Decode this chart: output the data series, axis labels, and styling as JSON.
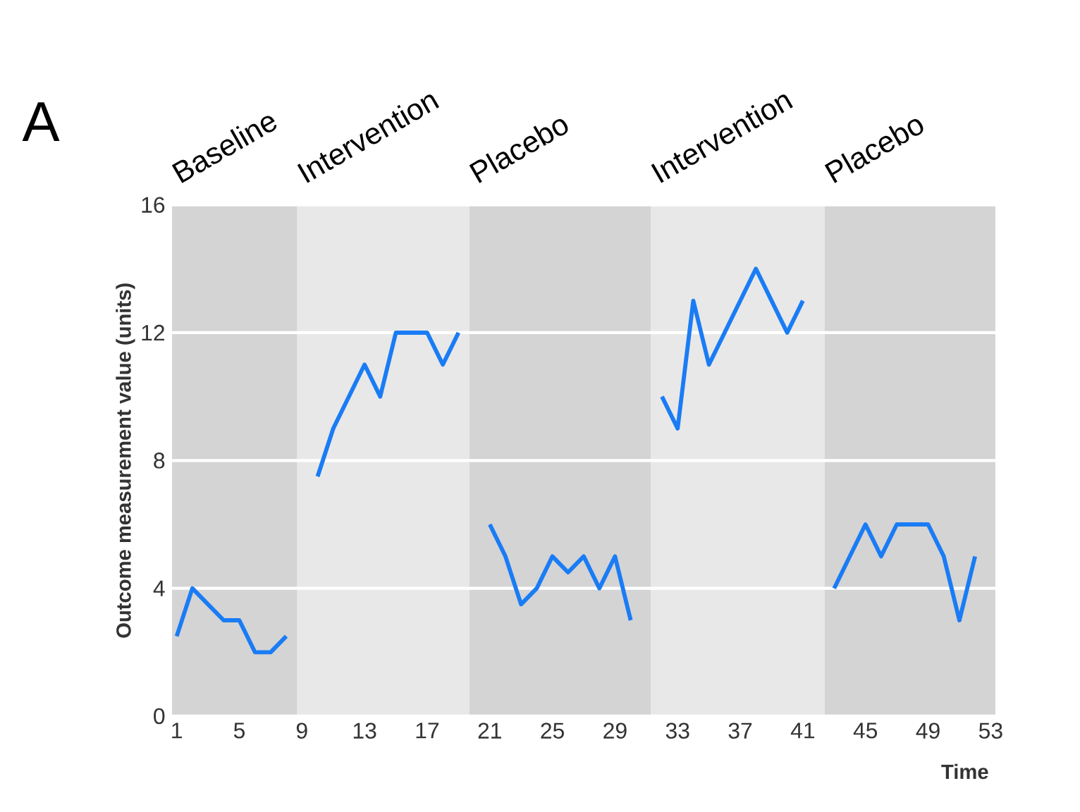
{
  "chart_data": {
    "type": "line",
    "title": "A",
    "xlabel": "Time",
    "ylabel": "Outcome measurement value (units)",
    "x": [
      1,
      2,
      3,
      4,
      5,
      6,
      7,
      8,
      9,
      10,
      11,
      12,
      13,
      14,
      15,
      16,
      17,
      18,
      19,
      20,
      21,
      22,
      23,
      24,
      25,
      26,
      27,
      28,
      29,
      30,
      31,
      32,
      33,
      34,
      35,
      36,
      37,
      38,
      39,
      40,
      41,
      42,
      43,
      44,
      45,
      46,
      47,
      48,
      49,
      50,
      51,
      52
    ],
    "series": [
      {
        "color": "#1a7cf5",
        "values": [
          2.5,
          4,
          3.5,
          3,
          3,
          2,
          2,
          2.5,
          null,
          7.5,
          9,
          10,
          11,
          10,
          12,
          12,
          12,
          11,
          12,
          null,
          6,
          5,
          3.5,
          4,
          5,
          4.5,
          5,
          4,
          5,
          3,
          null,
          10,
          9,
          13,
          11,
          12,
          13,
          14,
          13,
          12,
          13,
          null,
          4,
          5,
          6,
          5,
          6,
          6,
          6,
          5,
          3,
          5
        ]
      }
    ],
    "xlim": [
      0.7,
      53.3
    ],
    "ylim": [
      0,
      16
    ],
    "xticks": [
      1,
      5,
      9,
      13,
      17,
      21,
      25,
      29,
      33,
      37,
      41,
      45,
      49,
      53
    ],
    "yticks": [
      0,
      4,
      8,
      12,
      16
    ],
    "grid": "y",
    "marker": "none",
    "line_style": "solid",
    "bands": [
      {
        "axis": "x",
        "from": 0.7,
        "to": 8.7,
        "label": "Baseline",
        "color": "#d4d4d4"
      },
      {
        "axis": "x",
        "from": 8.7,
        "to": 19.7,
        "label": "Intervention",
        "color": "#e8e8e8"
      },
      {
        "axis": "x",
        "from": 19.7,
        "to": 31.3,
        "label": "Placebo",
        "color": "#d4d4d4"
      },
      {
        "axis": "x",
        "from": 31.3,
        "to": 42.4,
        "label": "Intervention",
        "color": "#e8e8e8"
      },
      {
        "axis": "x",
        "from": 42.4,
        "to": 53.3,
        "label": "Placebo",
        "color": "#d4d4d4"
      }
    ]
  }
}
